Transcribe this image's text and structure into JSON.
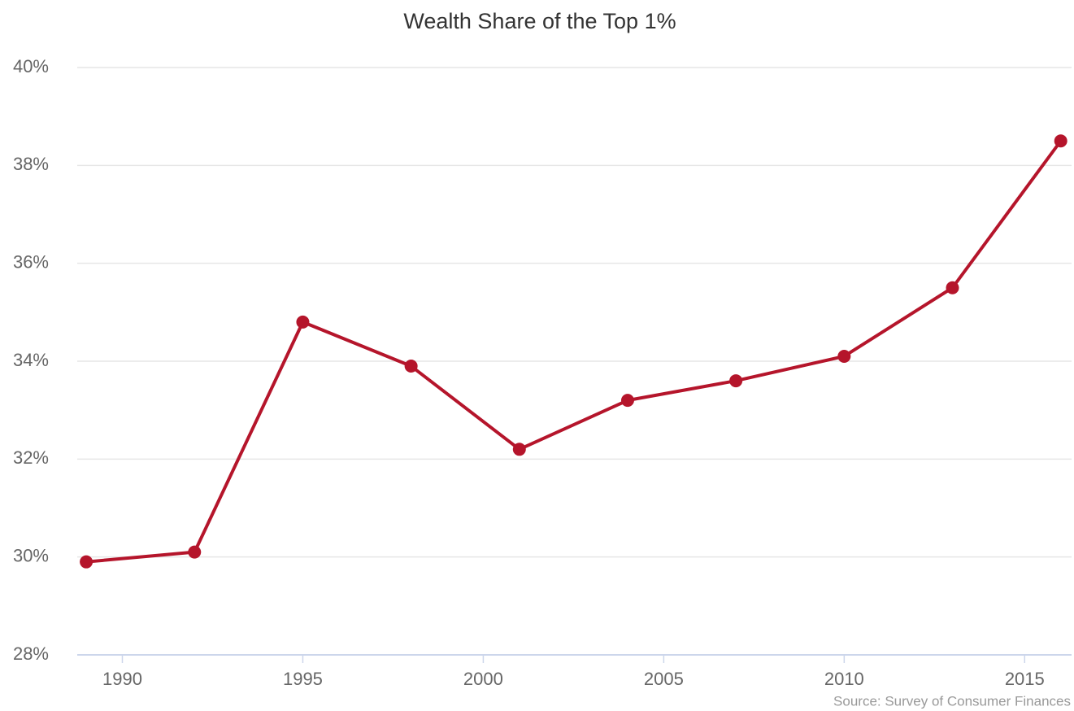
{
  "chart_data": {
    "type": "line",
    "title": "Wealth Share of the Top 1%",
    "source": "Source: Survey of Consumer Finances",
    "x": [
      1989,
      1992,
      1995,
      1998,
      2001,
      2004,
      2007,
      2010,
      2013,
      2016
    ],
    "series": [
      {
        "name": "Top 1%",
        "color": "#b5152b",
        "values": [
          29.9,
          30.1,
          34.8,
          33.9,
          32.2,
          33.2,
          33.6,
          34.1,
          35.5,
          38.5
        ]
      }
    ],
    "xlim": [
      1988.75,
      2016.3
    ],
    "xticks": [
      1990,
      1995,
      2000,
      2005,
      2010,
      2015
    ],
    "ylim": [
      28,
      40
    ],
    "yticks": [
      {
        "value": 28,
        "label": "28%"
      },
      {
        "value": 30,
        "label": "30%"
      },
      {
        "value": 32,
        "label": "32%"
      },
      {
        "value": 34,
        "label": "34%"
      },
      {
        "value": 36,
        "label": "36%"
      },
      {
        "value": 38,
        "label": "38%"
      },
      {
        "value": 40,
        "label": "40%"
      }
    ],
    "grid": true
  }
}
